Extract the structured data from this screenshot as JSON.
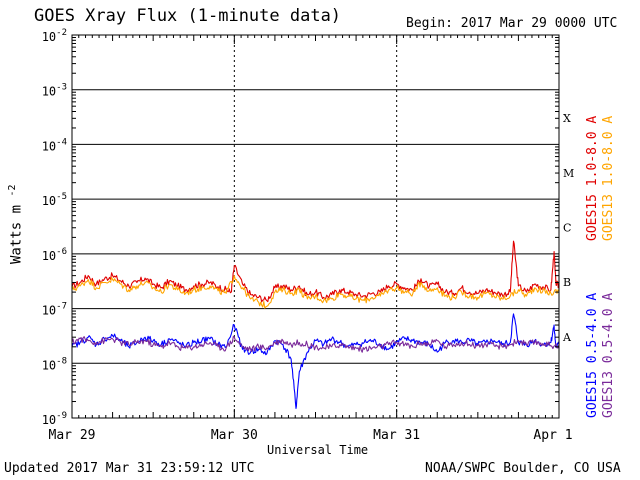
{
  "header": {
    "title": "GOES Xray Flux (1-minute data)",
    "begin": "Begin:  2017 Mar 29 0000 UTC"
  },
  "footer": {
    "updated": "Updated 2017 Mar 31 23:59:12 UTC",
    "credit": "NOAA/SWPC Boulder, CO USA"
  },
  "chart_data": {
    "type": "line",
    "title": "GOES Xray Flux (1-minute data)",
    "xlabel": "Universal Time",
    "ylabel": "Watts m",
    "ylabel_superscript": "-2",
    "yscale": "log",
    "ylim": [
      1e-09,
      0.01
    ],
    "y_tick_labels": [
      {
        "base": "10",
        "exp": "-9"
      },
      {
        "base": "10",
        "exp": "-8"
      },
      {
        "base": "10",
        "exp": "-7"
      },
      {
        "base": "10",
        "exp": "-6"
      },
      {
        "base": "10",
        "exp": "-5"
      },
      {
        "base": "10",
        "exp": "-4"
      },
      {
        "base": "10",
        "exp": "-3"
      },
      {
        "base": "10",
        "exp": "-2"
      }
    ],
    "x_tick_labels": [
      "Mar 29",
      "Mar 30",
      "Mar 31",
      "Apr 1"
    ],
    "xlim_days": [
      0,
      3
    ],
    "flare_classes": [
      "A",
      "B",
      "C",
      "M",
      "X"
    ],
    "flare_class_thresholds": [
      1e-08,
      1e-07,
      1e-06,
      1e-05,
      0.0001
    ],
    "grid": "horizontal lines at each decade, dotted vertical lines at day boundaries",
    "series": [
      {
        "name": "GOES15 1.0-8.0 A",
        "color": "#e00000",
        "x": [
          0,
          0.05,
          0.1,
          0.15,
          0.2,
          0.25,
          0.3,
          0.35,
          0.4,
          0.45,
          0.5,
          0.55,
          0.6,
          0.65,
          0.7,
          0.75,
          0.8,
          0.85,
          0.9,
          0.95,
          0.98,
          1.0,
          1.05,
          1.1,
          1.15,
          1.2,
          1.25,
          1.3,
          1.35,
          1.4,
          1.45,
          1.5,
          1.55,
          1.6,
          1.65,
          1.7,
          1.75,
          1.8,
          1.85,
          1.9,
          1.95,
          2.0,
          2.05,
          2.1,
          2.15,
          2.2,
          2.25,
          2.3,
          2.35,
          2.4,
          2.45,
          2.5,
          2.55,
          2.6,
          2.65,
          2.7,
          2.72,
          2.75,
          2.8,
          2.85,
          2.9,
          2.95,
          2.97,
          2.98,
          3.0
        ],
        "y": [
          2.5e-07,
          3e-07,
          4e-07,
          2.8e-07,
          3.5e-07,
          4e-07,
          3.2e-07,
          2.6e-07,
          3e-07,
          3.6e-07,
          2.8e-07,
          2.4e-07,
          3.2e-07,
          2.6e-07,
          2.2e-07,
          2.6e-07,
          2.8e-07,
          3e-07,
          2.5e-07,
          2.2e-07,
          2e-07,
          6e-07,
          2.8e-07,
          1.8e-07,
          1.6e-07,
          1.4e-07,
          2.4e-07,
          2.6e-07,
          2.2e-07,
          2.6e-07,
          1.8e-07,
          2e-07,
          1.6e-07,
          1.8e-07,
          2.2e-07,
          2e-07,
          1.8e-07,
          1.7e-07,
          1.9e-07,
          2e-07,
          2.6e-07,
          2.8e-07,
          2.4e-07,
          2.2e-07,
          3.5e-07,
          2.5e-07,
          2.8e-07,
          2e-07,
          1.9e-07,
          2.4e-07,
          2e-07,
          1.9e-07,
          2.2e-07,
          2e-07,
          1.8e-07,
          2e-07,
          1.7e-06,
          2.6e-07,
          2e-07,
          2.8e-07,
          2.5e-07,
          2.2e-07,
          1.1e-06,
          3e-07,
          2.5e-07
        ]
      },
      {
        "name": "GOES13 1.0-8.0 A",
        "color": "#ffa500",
        "x": [
          0,
          0.05,
          0.1,
          0.15,
          0.2,
          0.25,
          0.3,
          0.35,
          0.4,
          0.45,
          0.5,
          0.55,
          0.6,
          0.65,
          0.7,
          0.75,
          0.8,
          0.85,
          0.9,
          0.95,
          1.0,
          1.05,
          1.1,
          1.15,
          1.2,
          1.25,
          1.3,
          1.35,
          1.4,
          1.45,
          1.5,
          1.55,
          1.6,
          1.65,
          1.7,
          1.75,
          1.8,
          1.85,
          1.9,
          1.95,
          2.0,
          2.05,
          2.1,
          2.15,
          2.2,
          2.25,
          2.3,
          2.35,
          2.4,
          2.45,
          2.5,
          2.55,
          2.6,
          2.65,
          2.7,
          2.75,
          2.8,
          2.85,
          2.9,
          2.95,
          3.0
        ],
        "y": [
          2.2e-07,
          2.6e-07,
          3.4e-07,
          2.4e-07,
          3e-07,
          3.4e-07,
          2.8e-07,
          2.2e-07,
          2.6e-07,
          3e-07,
          2.4e-07,
          2e-07,
          2.8e-07,
          2.2e-07,
          1.9e-07,
          2.2e-07,
          2.4e-07,
          2.6e-07,
          2.1e-07,
          1.9e-07,
          4e-07,
          2.4e-07,
          1.5e-07,
          1.3e-07,
          1.1e-07,
          2e-07,
          2.2e-07,
          1.9e-07,
          2.2e-07,
          1.5e-07,
          1.7e-07,
          1.4e-07,
          1.5e-07,
          1.9e-07,
          1.7e-07,
          1.5e-07,
          1.4e-07,
          1.6e-07,
          1.7e-07,
          2.2e-07,
          2.4e-07,
          2e-07,
          1.9e-07,
          3e-07,
          2.1e-07,
          2.4e-07,
          1.7e-07,
          1.6e-07,
          2e-07,
          1.7e-07,
          1.6e-07,
          1.9e-07,
          1.7e-07,
          1.5e-07,
          1.7e-07,
          2.2e-07,
          1.7e-07,
          2.4e-07,
          2.1e-07,
          1.9e-07,
          2.1e-07
        ]
      },
      {
        "name": "GOES15 0.5-4.0 A",
        "color": "#0000ff",
        "x": [
          0,
          0.05,
          0.1,
          0.15,
          0.2,
          0.25,
          0.3,
          0.35,
          0.4,
          0.45,
          0.5,
          0.55,
          0.6,
          0.65,
          0.7,
          0.75,
          0.8,
          0.85,
          0.9,
          0.95,
          1.0,
          1.05,
          1.1,
          1.15,
          1.2,
          1.25,
          1.3,
          1.35,
          1.38,
          1.4,
          1.45,
          1.5,
          1.55,
          1.6,
          1.65,
          1.7,
          1.75,
          1.8,
          1.85,
          1.9,
          1.95,
          2.0,
          2.05,
          2.1,
          2.15,
          2.2,
          2.25,
          2.3,
          2.35,
          2.4,
          2.45,
          2.5,
          2.55,
          2.6,
          2.65,
          2.7,
          2.72,
          2.75,
          2.8,
          2.85,
          2.9,
          2.95,
          2.97,
          2.98,
          3.0
        ],
        "y": [
          2e-08,
          2.4e-08,
          3e-08,
          2.2e-08,
          2.8e-08,
          3.2e-08,
          2.6e-08,
          2e-08,
          2.4e-08,
          3e-08,
          2.6e-08,
          2.2e-08,
          2.8e-08,
          2.4e-08,
          2e-08,
          2.4e-08,
          2.6e-08,
          2.8e-08,
          2.2e-08,
          2e-08,
          5e-08,
          1.8e-08,
          1.6e-08,
          1.8e-08,
          1.5e-08,
          2.6e-08,
          2.2e-08,
          1.2e-08,
          1.5e-09,
          7e-09,
          1.6e-08,
          2.6e-08,
          2.2e-08,
          2.8e-08,
          2.4e-08,
          2e-08,
          2.2e-08,
          2.4e-08,
          2.6e-08,
          2.2e-08,
          1.8e-08,
          2.4e-08,
          2.8e-08,
          2.6e-08,
          2.4e-08,
          2.2e-08,
          1.6e-08,
          2.4e-08,
          2.6e-08,
          2.4e-08,
          2.6e-08,
          2.2e-08,
          2.4e-08,
          2.6e-08,
          2.2e-08,
          2.4e-08,
          8e-08,
          2.4e-08,
          2.2e-08,
          2.6e-08,
          2.2e-08,
          2.4e-08,
          5e-08,
          2e-08,
          2.2e-08
        ]
      },
      {
        "name": "GOES13 0.5-4.0 A",
        "color": "#7a2a9a",
        "x": [
          0,
          0.05,
          0.1,
          0.15,
          0.2,
          0.25,
          0.3,
          0.35,
          0.4,
          0.45,
          0.5,
          0.55,
          0.6,
          0.65,
          0.7,
          0.75,
          0.8,
          0.85,
          0.9,
          0.95,
          1.0,
          1.05,
          1.1,
          1.15,
          1.2,
          1.25,
          1.3,
          1.35,
          1.4,
          1.45,
          1.5,
          1.55,
          1.6,
          1.65,
          1.7,
          1.75,
          1.8,
          1.85,
          1.9,
          1.95,
          2.0,
          2.05,
          2.1,
          2.15,
          2.2,
          2.25,
          2.3,
          2.35,
          2.4,
          2.45,
          2.5,
          2.55,
          2.6,
          2.65,
          2.7,
          2.75,
          2.8,
          2.85,
          2.9,
          2.95,
          3.0
        ],
        "y": [
          2.4e-08,
          2.8e-08,
          2.6e-08,
          2.4e-08,
          2.6e-08,
          2.8e-08,
          2.4e-08,
          2.2e-08,
          2.4e-08,
          2.6e-08,
          2.2e-08,
          2e-08,
          2.4e-08,
          2e-08,
          1.9e-08,
          2e-08,
          2.2e-08,
          2.4e-08,
          2e-08,
          1.9e-08,
          3e-08,
          2e-08,
          1.8e-08,
          2e-08,
          1.9e-08,
          2.4e-08,
          2.6e-08,
          2.2e-08,
          2.4e-08,
          2.2e-08,
          2e-08,
          1.9e-08,
          2e-08,
          2.2e-08,
          2e-08,
          1.9e-08,
          1.8e-08,
          1.9e-08,
          2e-08,
          2.2e-08,
          2.4e-08,
          2.2e-08,
          2e-08,
          2.4e-08,
          2.2e-08,
          2.6e-08,
          2e-08,
          2.2e-08,
          2.4e-08,
          2.2e-08,
          2.1e-08,
          2.2e-08,
          2.1e-08,
          2e-08,
          2.2e-08,
          2.6e-08,
          2.2e-08,
          2.4e-08,
          2.3e-08,
          2.1e-08,
          2.2e-08
        ]
      }
    ]
  }
}
